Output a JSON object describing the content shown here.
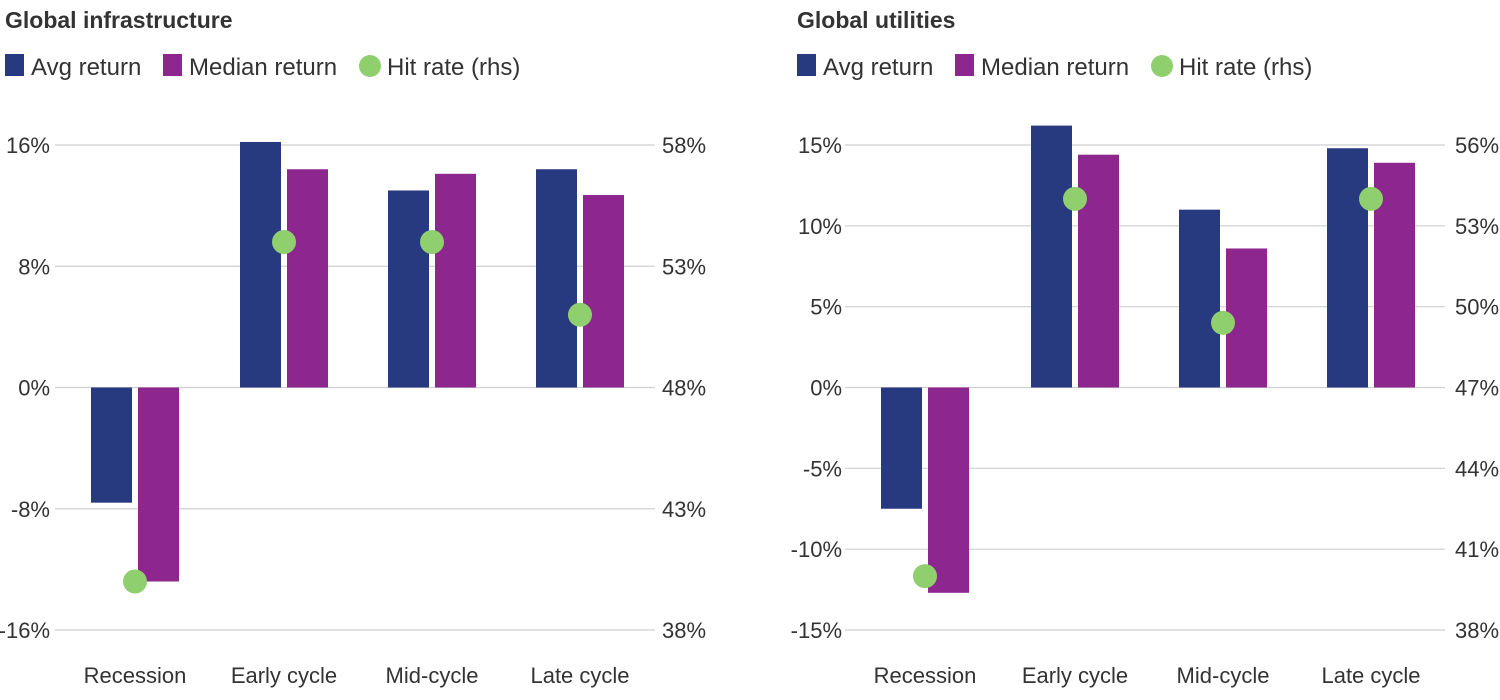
{
  "colors": {
    "avg": "#27397f",
    "median": "#8d278f",
    "hit": "#8fcf6e"
  },
  "legend": {
    "avg": "Avg return",
    "median": "Median return",
    "hit": "Hit rate (rhs)"
  },
  "chart_data": [
    {
      "type": "bar",
      "title": "Global infrastructure",
      "categories": [
        "Recession",
        "Early cycle",
        "Mid-cycle",
        "Late cycle"
      ],
      "series": [
        {
          "name": "Avg return",
          "values": [
            -7.6,
            16.2,
            13.0,
            14.4
          ]
        },
        {
          "name": "Median return",
          "values": [
            -12.8,
            14.4,
            14.1,
            12.7
          ]
        }
      ],
      "hit_rate": {
        "name": "Hit rate (rhs)",
        "values": [
          40.0,
          54.0,
          54.0,
          51.0
        ]
      },
      "ylim": [
        -16,
        16
      ],
      "y2lim": [
        38,
        58
      ],
      "yticks": [
        "16%",
        "8%",
        "0%",
        "-8%",
        "-16%"
      ],
      "y2ticks": [
        "58%",
        "53%",
        "48%",
        "43%",
        "38%"
      ]
    },
    {
      "type": "bar",
      "title": "Global utilities",
      "categories": [
        "Recession",
        "Early cycle",
        "Mid-cycle",
        "Late cycle"
      ],
      "series": [
        {
          "name": "Avg return",
          "values": [
            -7.5,
            16.2,
            11.0,
            14.8
          ]
        },
        {
          "name": "Median return",
          "values": [
            -12.7,
            14.4,
            8.6,
            13.9
          ]
        }
      ],
      "hit_rate": {
        "name": "Hit rate (rhs)",
        "values": [
          40.0,
          54.0,
          49.4,
          54.0
        ]
      },
      "ylim": [
        -15,
        15
      ],
      "y2lim": [
        38,
        56
      ],
      "yticks": [
        "15%",
        "10%",
        "5%",
        "0%",
        "-5%",
        "-10%",
        "-15%"
      ],
      "y2ticks": [
        "56%",
        "53%",
        "50%",
        "47%",
        "44%",
        "41%",
        "38%"
      ]
    }
  ]
}
